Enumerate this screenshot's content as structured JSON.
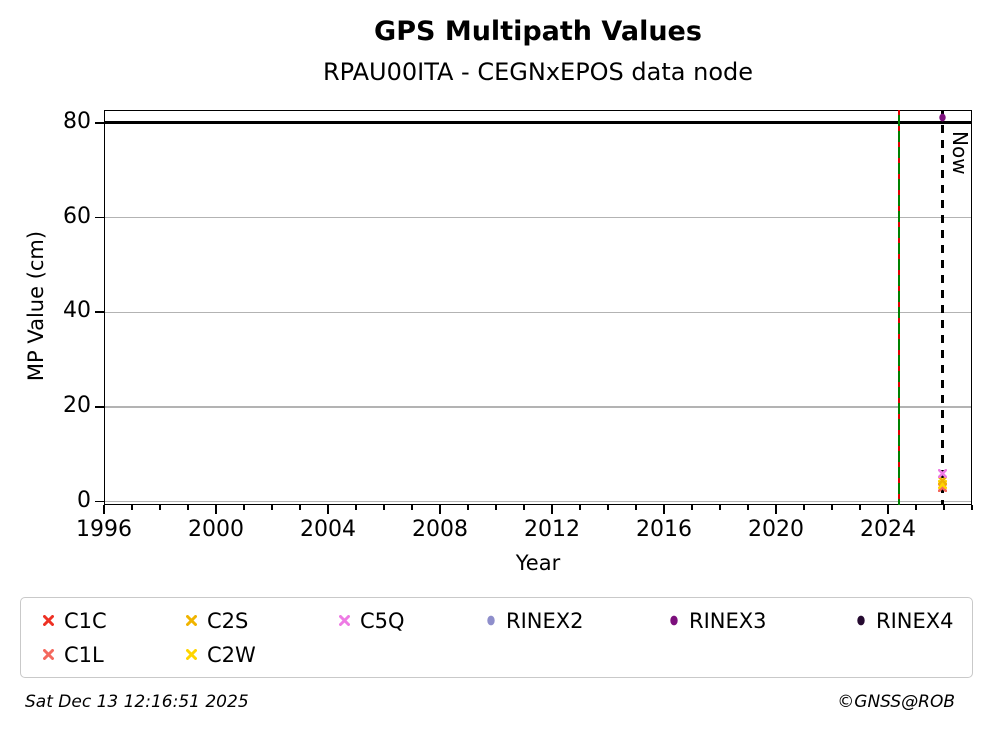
{
  "header": {
    "title": "GPS Multipath Values",
    "subtitle": "RPAU00ITA - CEGNxEPOS data node"
  },
  "footer": {
    "timestamp": "Sat Dec 13 12:16:51 2025",
    "credit": "©GNSS@ROB"
  },
  "chart_data": {
    "type": "scatter",
    "title": "GPS Multipath Values",
    "subtitle": "RPAU00ITA - CEGNxEPOS data node",
    "xlabel": "Year",
    "ylabel": "MP Value (cm)",
    "xlim": [
      1996,
      2027
    ],
    "ylim": [
      -0.7,
      82.7
    ],
    "x_major_ticks": [
      1996,
      2000,
      2004,
      2008,
      2012,
      2016,
      2020,
      2024
    ],
    "x_minor_ticks": [
      1996,
      1997,
      1998,
      1999,
      2000,
      2001,
      2002,
      2003,
      2004,
      2005,
      2006,
      2007,
      2008,
      2009,
      2010,
      2011,
      2012,
      2013,
      2014,
      2015,
      2016,
      2017,
      2018,
      2019,
      2020,
      2021,
      2022,
      2023,
      2024,
      2025,
      2026,
      2027
    ],
    "y_ticks": [
      0,
      20,
      40,
      60,
      80
    ],
    "grid": "horizontal",
    "gridline_values": [
      0,
      20,
      40,
      60
    ],
    "gridline_color": "#b3b3b3",
    "threshold_line": {
      "y": 80,
      "color": "#000000"
    },
    "event_line": {
      "x": 2024.4,
      "colors": [
        "#008000",
        "#e00000"
      ],
      "style": "green-red-dashed"
    },
    "now_line": {
      "x": 2025.95,
      "label": "Now",
      "color": "#000000",
      "style": "dashed"
    },
    "legend_position": "bottom",
    "legend_order": [
      "C1C",
      "C2S",
      "C5Q",
      "RINEX2",
      "RINEX3",
      "RINEX4",
      "C1L",
      "C2W"
    ],
    "series": [
      {
        "name": "C1C",
        "marker": "x",
        "color": "#ee3124",
        "points": [
          {
            "x": 2025.95,
            "y": 2.9
          }
        ]
      },
      {
        "name": "C1L",
        "marker": "x",
        "color": "#f4695e",
        "points": [
          {
            "x": 2025.95,
            "y": 3.1
          }
        ]
      },
      {
        "name": "C2W",
        "marker": "x",
        "color": "#ffd500",
        "points": [
          {
            "x": 2025.95,
            "y": 3.7
          }
        ]
      },
      {
        "name": "C2S",
        "marker": "x",
        "color": "#f0b400",
        "points": [
          {
            "x": 2025.95,
            "y": 4.4
          }
        ]
      },
      {
        "name": "C5Q",
        "marker": "x",
        "color": "#ee7be4",
        "points": [
          {
            "x": 2025.95,
            "y": 5.9
          }
        ]
      },
      {
        "name": "RINEX2",
        "marker": "circle",
        "color": "#8e8ecb",
        "points": []
      },
      {
        "name": "RINEX3",
        "marker": "circle",
        "color": "#7c0f7c",
        "points": [
          {
            "x": 2025.95,
            "y": 81.1
          }
        ]
      },
      {
        "name": "RINEX4",
        "marker": "circle",
        "color": "#250a30",
        "points": []
      }
    ]
  }
}
